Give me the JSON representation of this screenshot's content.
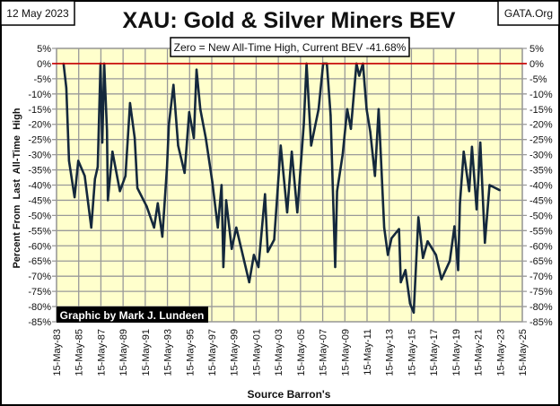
{
  "header": {
    "date": "12 May 2023",
    "site": "GATA.Org",
    "subtitle": "Zero = New All-Time High, Current BEV -41.68%",
    "credit": "Graphic by Mark J. Lundeen"
  },
  "chart_data": {
    "type": "line",
    "title": "XAU: Gold & Silver Miners BEV",
    "xlabel": "Source Barron's",
    "ylabel": "Percent From  Last  All-Time  High",
    "ylim": [
      -85,
      5
    ],
    "xlim": [
      "1983-05-15",
      "2025-05-15"
    ],
    "grid": true,
    "y_ticks": [
      5,
      0,
      -5,
      -10,
      -15,
      -20,
      -25,
      -30,
      -35,
      -40,
      -45,
      -50,
      -55,
      -60,
      -65,
      -70,
      -75,
      -80,
      -85
    ],
    "y_tick_labels": [
      "5%",
      "0%",
      "-5%",
      "-10%",
      "-15%",
      "-20%",
      "-25%",
      "-30%",
      "-35%",
      "-40%",
      "-45%",
      "-50%",
      "-55%",
      "-60%",
      "-65%",
      "-70%",
      "-75%",
      "-80%",
      "-85%"
    ],
    "x_tick_labels": [
      "15-May-83",
      "15-May-85",
      "15-May-87",
      "15-May-89",
      "15-May-91",
      "15-May-93",
      "15-May-95",
      "15-May-97",
      "15-May-99",
      "15-May-01",
      "15-May-03",
      "15-May-05",
      "15-May-07",
      "15-May-09",
      "15-May-11",
      "15-May-13",
      "15-May-15",
      "15-May-17",
      "15-May-19",
      "15-May-21",
      "15-May-23",
      "15-May-25"
    ],
    "reference_line": {
      "y": 0,
      "color": "#cc0000"
    },
    "series_color": "#14283c",
    "plot_background": "#ffffcc",
    "points": [
      [
        "1984-01",
        0
      ],
      [
        "1984-04",
        -8
      ],
      [
        "1984-06",
        -24
      ],
      [
        "1984-07",
        -32
      ],
      [
        "1985-01",
        -44
      ],
      [
        "1985-05",
        -32
      ],
      [
        "1985-12",
        -37
      ],
      [
        "1986-07",
        -54
      ],
      [
        "1986-11",
        -38
      ],
      [
        "1987-02",
        -34
      ],
      [
        "1987-05",
        0
      ],
      [
        "1987-07",
        -26
      ],
      [
        "1987-09",
        0
      ],
      [
        "1987-12",
        -22
      ],
      [
        "1988-01",
        -45
      ],
      [
        "1988-06",
        -29
      ],
      [
        "1989-02",
        -42
      ],
      [
        "1989-08",
        -37
      ],
      [
        "1990-01",
        -13
      ],
      [
        "1990-06",
        -24.5
      ],
      [
        "1990-09",
        -41
      ],
      [
        "1991-07",
        -47
      ],
      [
        "1992-03",
        -54
      ],
      [
        "1992-07",
        -46
      ],
      [
        "1992-12",
        -57
      ],
      [
        "1993-05",
        -34
      ],
      [
        "1993-07",
        -20
      ],
      [
        "1993-12",
        -7
      ],
      [
        "1994-05",
        -27
      ],
      [
        "1994-12",
        -36
      ],
      [
        "1995-05",
        -16
      ],
      [
        "1995-10",
        -24.5
      ],
      [
        "1996-01",
        -2
      ],
      [
        "1996-05",
        -15
      ],
      [
        "1996-11",
        -24.5
      ],
      [
        "1997-06",
        -39
      ],
      [
        "1997-12",
        -54
      ],
      [
        "1998-04",
        -40
      ],
      [
        "1998-06",
        -67
      ],
      [
        "1998-09",
        -45
      ],
      [
        "1999-03",
        -61
      ],
      [
        "1999-08",
        -54
      ],
      [
        "2000-10",
        -72
      ],
      [
        "2001-03",
        -63
      ],
      [
        "2001-08",
        -67
      ],
      [
        "2002-03",
        -43
      ],
      [
        "2002-06",
        -62
      ],
      [
        "2003-01",
        -58
      ],
      [
        "2003-08",
        -27
      ],
      [
        "2004-03",
        -49
      ],
      [
        "2004-08",
        -29
      ],
      [
        "2005-02",
        -49
      ],
      [
        "2005-09",
        -20
      ],
      [
        "2005-12",
        0
      ],
      [
        "2006-05",
        -27
      ],
      [
        "2007-01",
        -15
      ],
      [
        "2007-06",
        0
      ],
      [
        "2007-10",
        0
      ],
      [
        "2008-02",
        -17
      ],
      [
        "2008-07",
        -67
      ],
      [
        "2008-09",
        -42
      ],
      [
        "2009-03",
        -30
      ],
      [
        "2009-08",
        -15
      ],
      [
        "2009-12",
        -21.5
      ],
      [
        "2010-06",
        0
      ],
      [
        "2010-09",
        -4
      ],
      [
        "2011-01",
        0
      ],
      [
        "2011-05",
        -15
      ],
      [
        "2011-09",
        -22.5
      ],
      [
        "2012-02",
        -37
      ],
      [
        "2012-06",
        -15
      ],
      [
        "2012-08",
        -28
      ],
      [
        "2012-12",
        -54
      ],
      [
        "2013-04",
        -63
      ],
      [
        "2013-08",
        -57.5
      ],
      [
        "2014-04",
        -54.5
      ],
      [
        "2014-06",
        -72
      ],
      [
        "2014-11",
        -68
      ],
      [
        "2015-04",
        -79
      ],
      [
        "2015-08",
        -82
      ],
      [
        "2016-01",
        -50.6
      ],
      [
        "2016-06",
        -64
      ],
      [
        "2016-11",
        -58.5
      ],
      [
        "2017-08",
        -63
      ],
      [
        "2018-02",
        -71
      ],
      [
        "2018-11",
        -65
      ],
      [
        "2019-04",
        -53.6
      ],
      [
        "2019-08",
        -68
      ],
      [
        "2019-10",
        -46
      ],
      [
        "2020-02",
        -29
      ],
      [
        "2020-08",
        -42
      ],
      [
        "2020-11",
        -27.4
      ],
      [
        "2021-04",
        -48
      ],
      [
        "2021-08",
        -26
      ],
      [
        "2022-01",
        -59
      ],
      [
        "2022-06",
        -40
      ],
      [
        "2023-05",
        -41.68
      ]
    ]
  }
}
